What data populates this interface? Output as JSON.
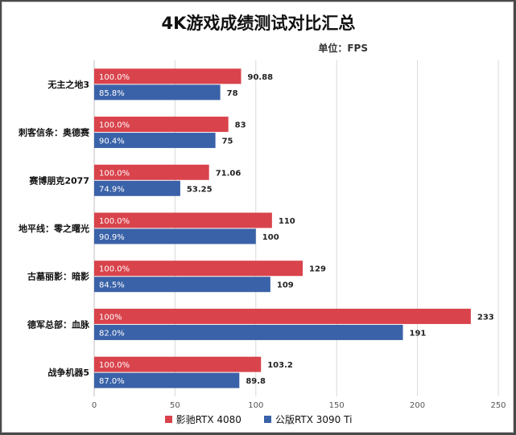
{
  "chart_data": {
    "type": "bar",
    "orientation": "horizontal",
    "title": "4K游戏成绩测试对比汇总",
    "unit_label": "单位：FPS",
    "categories": [
      "无主之地3",
      "刺客信条：奥德赛",
      "赛博朋克2077",
      "地平线：零之曙光",
      "古墓丽影：暗影",
      "德军总部：血脉",
      "战争机器5"
    ],
    "series": [
      {
        "name": "影驰RTX 4080",
        "color": "#d9434b",
        "values": [
          90.88,
          83,
          71.06,
          110,
          129,
          233,
          103.2
        ],
        "value_labels": [
          "90.88",
          "83",
          "71.06",
          "110",
          "129",
          "233",
          "103.2"
        ],
        "percent_labels": [
          "100.0%",
          "100.0%",
          "100.0%",
          "100.0%",
          "100.0%",
          "100%",
          "100.0%"
        ]
      },
      {
        "name": "公版RTX 3090 Ti",
        "color": "#3a62a8",
        "values": [
          78,
          75,
          53.25,
          100,
          109,
          191,
          89.8
        ],
        "value_labels": [
          "78",
          "75",
          "53.25",
          "100",
          "109",
          "191",
          "89.8"
        ],
        "percent_labels": [
          "85.8%",
          "90.4%",
          "74.9%",
          "90.9%",
          "84.5%",
          "82.0%",
          "87.0%"
        ]
      }
    ],
    "xlim": [
      0,
      250
    ],
    "xticks": [
      "0",
      "50",
      "100",
      "150",
      "200",
      "250"
    ],
    "grid": "vertical",
    "legend": "bottom"
  }
}
